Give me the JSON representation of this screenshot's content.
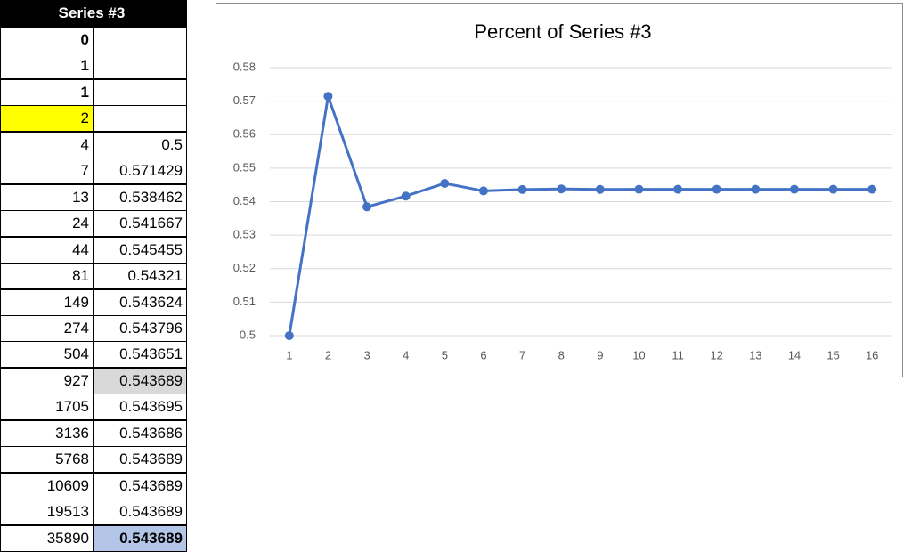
{
  "table": {
    "header": "Series #3",
    "rows": [
      [
        "0"
      ],
      [
        "1"
      ],
      [
        "1"
      ],
      [
        "2"
      ],
      [
        "4",
        "0.5"
      ],
      [
        "7",
        "0.571429"
      ],
      [
        "13",
        "0.538462"
      ],
      [
        "24",
        "0.541667"
      ],
      [
        "44",
        "0.545455"
      ],
      [
        "81",
        "0.54321"
      ],
      [
        "149",
        "0.543624"
      ],
      [
        "274",
        "0.543796"
      ],
      [
        "504",
        "0.543651"
      ],
      [
        "927",
        "0.543689"
      ],
      [
        "1705",
        "0.543695"
      ],
      [
        "3136",
        "0.543686"
      ],
      [
        "5768",
        "0.543689"
      ],
      [
        "10609",
        "0.543689"
      ],
      [
        "19513",
        "0.543689"
      ],
      [
        "35890",
        "0.543689"
      ]
    ]
  },
  "chart_data": {
    "type": "line",
    "title": "Percent of Series #3",
    "categories": [
      1,
      2,
      3,
      4,
      5,
      6,
      7,
      8,
      9,
      10,
      11,
      12,
      13,
      14,
      15,
      16
    ],
    "series": [
      {
        "name": "Percent of Series #3",
        "color": "#4472c4",
        "values": [
          0.5,
          0.571429,
          0.538462,
          0.541667,
          0.545455,
          0.54321,
          0.543624,
          0.543796,
          0.543651,
          0.543689,
          0.543695,
          0.543686,
          0.543689,
          0.543689,
          0.543689,
          0.543689
        ]
      }
    ],
    "ylim": [
      0.5,
      0.58
    ],
    "yticks": [
      0.5,
      0.51,
      0.52,
      0.53,
      0.54,
      0.55,
      0.56,
      0.57,
      0.58
    ],
    "grid": true
  }
}
